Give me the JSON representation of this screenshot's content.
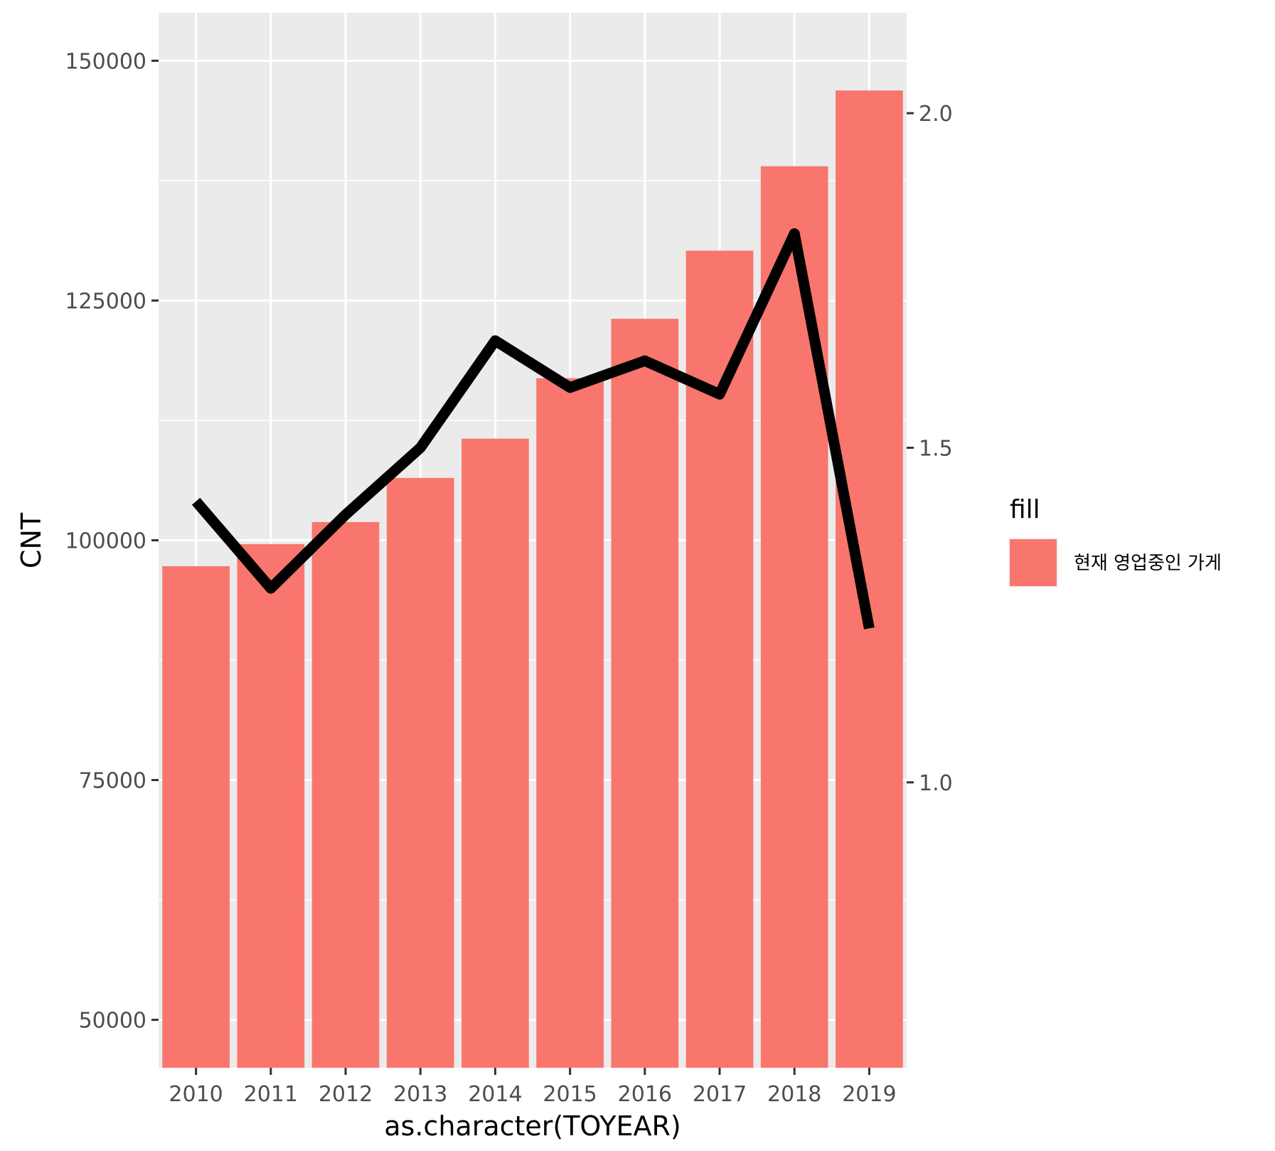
{
  "chart_data": {
    "type": "bar",
    "xlabel": "as.character(TOYEAR)",
    "ylabel": "CNT",
    "categories": [
      "2010",
      "2011",
      "2012",
      "2013",
      "2014",
      "2015",
      "2016",
      "2017",
      "2018",
      "2019"
    ],
    "series": [
      {
        "type": "bar",
        "axis": "left",
        "color": "#f8766d",
        "values": [
          97300,
          99600,
          101900,
          106500,
          110600,
          116900,
          123100,
          130200,
          139000,
          146900
        ]
      },
      {
        "type": "line",
        "axis": "right",
        "color": "#000000",
        "values": [
          1.42,
          1.29,
          1.4,
          1.5,
          1.66,
          1.59,
          1.63,
          1.58,
          1.82,
          1.23
        ]
      }
    ],
    "y_left": {
      "range": [
        45000,
        155000
      ],
      "ticks": [
        50000,
        75000,
        100000,
        125000,
        150000
      ],
      "tick_labels": [
        "50000",
        "75000",
        "100000",
        "125000",
        "150000"
      ]
    },
    "y_right": {
      "range": [
        0.5735,
        2.15
      ],
      "ticks": [
        1.0,
        1.5,
        2.0
      ],
      "tick_labels": [
        "1.0",
        "1.5",
        "2.0"
      ]
    },
    "grid": true,
    "legend": {
      "title": "fill",
      "placement": "right",
      "entries": [
        {
          "label": "현재 영업중인 가게",
          "color": "#f8766d"
        }
      ]
    }
  }
}
